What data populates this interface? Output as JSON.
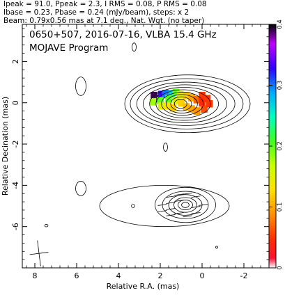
{
  "header_lines": [
    "Ipeak = 91.0, Ppeak = 2.3, I RMS = 0.08, P RMS = 0.08",
    "Ibase = 0.23, Pbase = 0.24 (mJy/beam), steps: x 2",
    "Beam: 0.79x0.56 mas at 7.1 deg., Nat. Wgt. (no taper)"
  ],
  "plot": {
    "title": "0650+507, 2016-07-16, VLBA 15.4 GHz",
    "subtitle": "MOJAVE Program"
  },
  "colorbar": {
    "min": 0,
    "max": 0.4,
    "ticks": [
      0,
      0.1,
      0.2,
      0.3,
      0.4
    ]
  },
  "chart_data": {
    "type": "contour",
    "xlabel": "Relative R.A. (mas)",
    "ylabel": "Relative Decination (mas)",
    "xlim": [
      8.6,
      -3.2
    ],
    "ylim": [
      -8.0,
      3.8
    ],
    "xticks": [
      8,
      6,
      4,
      2,
      0,
      -2
    ],
    "yticks": [
      2,
      0,
      -2,
      -4,
      -6
    ],
    "beam": {
      "major_mas": 0.79,
      "minor_mas": 0.56,
      "pa_deg": 7.1,
      "center": [
        7.8,
        -7.3
      ]
    },
    "stokes_i_peak_mJy_per_beam": 91.0,
    "polarized_peak_mJy_per_beam": 2.3,
    "i_rms": 0.08,
    "p_rms": 0.08,
    "i_base": 0.23,
    "p_base": 0.24,
    "contour_step_factor": 2,
    "top_panel": {
      "contours": [
        {
          "cx": 0.7,
          "cy": -0.05,
          "rx": [
            3.0,
            2.7,
            2.35,
            2.0,
            1.65,
            1.3,
            1.0,
            0.75,
            0.5,
            0.3
          ],
          "ry": [
            1.4,
            1.22,
            1.05,
            0.92,
            0.8,
            0.68,
            0.56,
            0.45,
            0.34,
            0.22
          ]
        }
      ],
      "isolated_contours": [
        {
          "cx": 5.8,
          "cy": 0.8,
          "rx": 0.25,
          "ry": 0.45
        },
        {
          "cx": 3.25,
          "cy": 2.7,
          "rx": 0.1,
          "ry": 0.2
        },
        {
          "cx": 1.75,
          "cy": -2.15,
          "rx": 0.1,
          "ry": 0.2
        }
      ],
      "fractional_polarization_samples": [
        {
          "x": 2.15,
          "y": 0.2,
          "value": 0.4
        },
        {
          "x": 2.3,
          "y": 0.35,
          "value": 0.39
        },
        {
          "x": 1.95,
          "y": 0.4,
          "value": 0.33
        },
        {
          "x": 1.75,
          "y": 0.45,
          "value": 0.3
        },
        {
          "x": 1.45,
          "y": 0.45,
          "value": 0.27
        },
        {
          "x": 1.25,
          "y": 0.5,
          "value": 0.2
        },
        {
          "x": 1.05,
          "y": 0.4,
          "value": 0.15
        },
        {
          "x": 0.75,
          "y": 0.35,
          "value": 0.12
        },
        {
          "x": 0.5,
          "y": 0.25,
          "value": 0.1
        },
        {
          "x": 0.25,
          "y": 0.15,
          "value": 0.07
        },
        {
          "x": 0.0,
          "y": 0.0,
          "value": 0.04
        },
        {
          "x": 2.35,
          "y": 0.05,
          "value": 0.18
        },
        {
          "x": 2.0,
          "y": 0.1,
          "value": 0.2
        },
        {
          "x": 1.6,
          "y": 0.2,
          "value": 0.2
        },
        {
          "x": 1.25,
          "y": 0.1,
          "value": 0.15
        },
        {
          "x": 1.0,
          "y": 0.0,
          "value": 0.12
        },
        {
          "x": 0.75,
          "y": -0.2,
          "value": 0.11
        },
        {
          "x": 0.5,
          "y": -0.3,
          "value": 0.1
        },
        {
          "x": 0.25,
          "y": -0.4,
          "value": 0.09
        },
        {
          "x": -0.1,
          "y": -0.3,
          "value": 0.06
        },
        {
          "x": 1.95,
          "y": -0.15,
          "value": 0.15
        },
        {
          "x": 1.65,
          "y": -0.15,
          "value": 0.13
        },
        {
          "x": 1.4,
          "y": -0.25,
          "value": 0.12
        },
        {
          "x": 0.0,
          "y": 0.35,
          "value": 0.05
        },
        {
          "x": -0.25,
          "y": 0.2,
          "value": 0.05
        },
        {
          "x": -0.35,
          "y": -0.05,
          "value": 0.05
        }
      ]
    },
    "bottom_panel": {
      "contours": [
        {
          "cx": 1.8,
          "cy": -5.0,
          "rx": 3.1,
          "ry": 1.0
        }
      ],
      "polarized_contours": [
        {
          "cx": 0.8,
          "cy": -4.95,
          "rx": [
            1.45,
            1.1,
            0.8,
            0.55,
            0.35,
            0.18
          ],
          "ry": [
            0.85,
            0.66,
            0.5,
            0.36,
            0.24,
            0.13
          ]
        }
      ],
      "evpa_ticks": [
        {
          "x": 1.5,
          "y": -4.55,
          "angle_deg": 8
        },
        {
          "x": 1.5,
          "y": -4.85,
          "angle_deg": 8
        },
        {
          "x": 1.5,
          "y": -5.15,
          "angle_deg": 8
        },
        {
          "x": 1.5,
          "y": -5.45,
          "angle_deg": 8
        },
        {
          "x": 1.1,
          "y": -4.45,
          "angle_deg": 8
        },
        {
          "x": 1.1,
          "y": -4.75,
          "angle_deg": 8
        },
        {
          "x": 1.1,
          "y": -5.35,
          "angle_deg": 8
        },
        {
          "x": 0.7,
          "y": -4.4,
          "angle_deg": 8
        },
        {
          "x": 0.7,
          "y": -5.5,
          "angle_deg": 8
        },
        {
          "x": 0.3,
          "y": -4.55,
          "angle_deg": 8
        },
        {
          "x": 0.3,
          "y": -5.05,
          "angle_deg": 8
        },
        {
          "x": 0.3,
          "y": -5.35,
          "angle_deg": 8
        },
        {
          "x": 1.9,
          "y": -4.95,
          "angle_deg": 8
        },
        {
          "x": 1.9,
          "y": -5.25,
          "angle_deg": 8
        },
        {
          "x": -0.05,
          "y": -4.95,
          "angle_deg": 8
        }
      ],
      "isolated_contours": [
        {
          "cx": 5.8,
          "cy": -4.15,
          "rx": 0.25,
          "ry": 0.35
        },
        {
          "cx": 3.3,
          "cy": -5.0,
          "rx": 0.08,
          "ry": 0.08
        },
        {
          "cx": 7.45,
          "cy": -5.95,
          "rx": 0.08,
          "ry": 0.06
        },
        {
          "cx": -0.7,
          "cy": -7.0,
          "rx": 0.05,
          "ry": 0.05
        }
      ]
    }
  }
}
